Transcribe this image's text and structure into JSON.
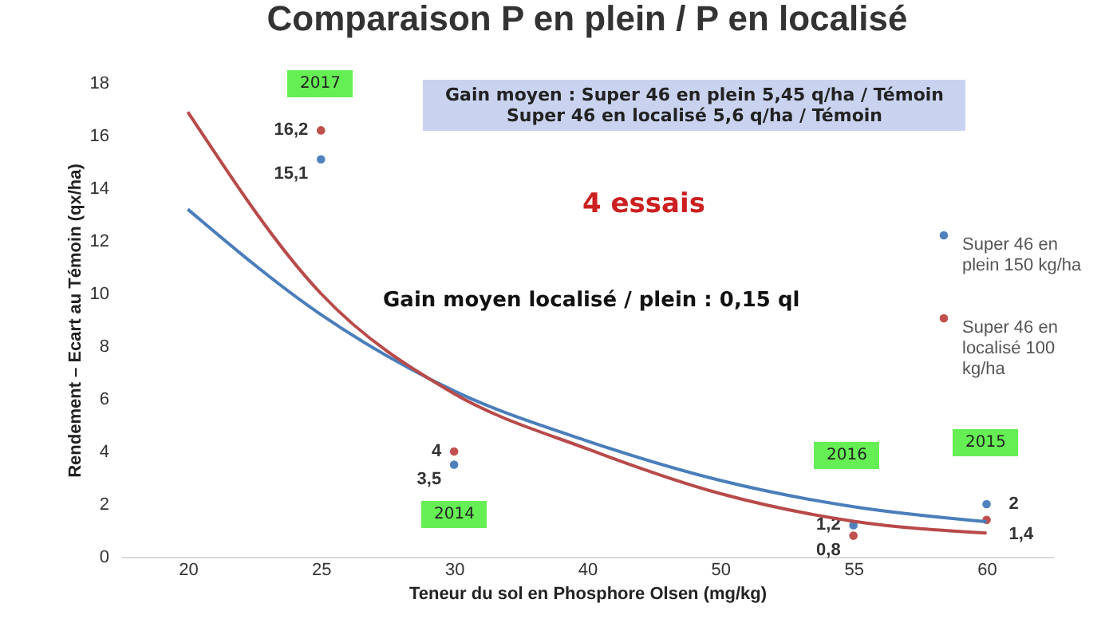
{
  "chart_data": {
    "type": "scatter",
    "title": "Comparaison P en plein / P en localisé",
    "xlabel": "Teneur du sol en Phosphore Olsen (mg/kg)",
    "ylabel": "Rendement – Ecart au Témoin (qx/ha)",
    "categories": [
      "20",
      "25",
      "30",
      "40",
      "50",
      "55",
      "60"
    ],
    "ylim": [
      0,
      18
    ],
    "yticks": [
      0,
      2,
      4,
      6,
      8,
      10,
      12,
      14,
      16,
      18
    ],
    "legend": "right",
    "series": [
      {
        "name": "Super 46 en plein 150 kg/ha",
        "marker": "circle",
        "color": "#4f81bd",
        "values": [
          null,
          15.1,
          3.5,
          null,
          null,
          1.2,
          2
        ],
        "value_labels": [
          null,
          "15,1",
          "3,5",
          null,
          null,
          "1,2",
          "2"
        ]
      },
      {
        "name": "Super 46 en localisé 100 kg/ha",
        "marker": "circle",
        "color": "#c0504d",
        "values": [
          null,
          16.2,
          4,
          null,
          null,
          0.8,
          1.4
        ],
        "value_labels": [
          null,
          "16,2",
          "4",
          null,
          null,
          "0,8",
          "1,4"
        ]
      },
      {
        "type": "line",
        "marker": "none",
        "color": "#4a7ebb",
        "values": [
          13.2,
          9.2,
          6.3,
          4.4,
          2.9,
          1.9,
          1.33
        ]
      },
      {
        "type": "line",
        "marker": "none",
        "color": "#b84a4a",
        "values": [
          16.9,
          10.0,
          6.2,
          4.1,
          2.4,
          1.35,
          0.9
        ]
      }
    ],
    "annotations": [
      "2017",
      "2014",
      "2016",
      "2015",
      "Gain moyen : Super 46 en plein 5,45 q/ha / Témoin\nSuper 46 en localisé 5,6 q/ha / Témoin",
      "4 essais",
      "Gain moyen localisé / plein : 0,15 ql"
    ]
  }
}
